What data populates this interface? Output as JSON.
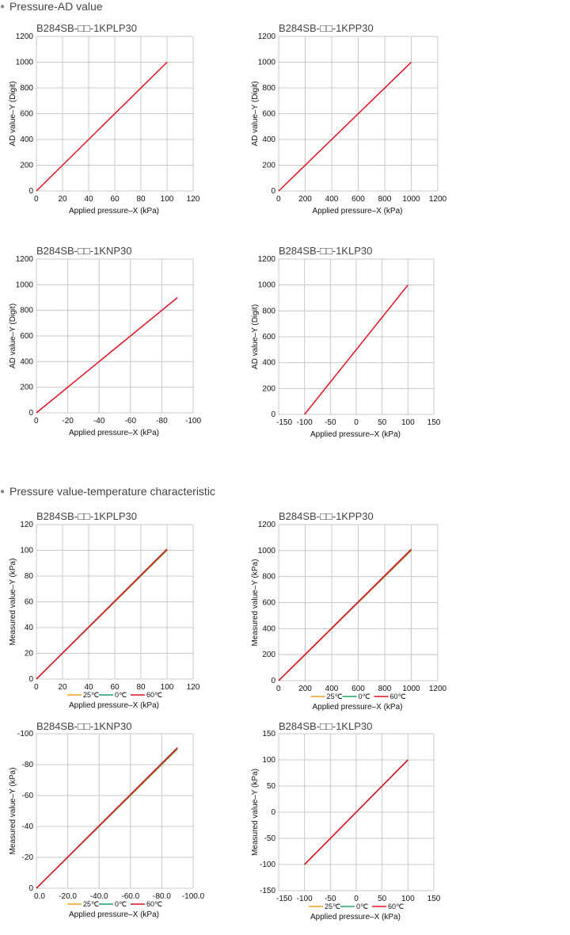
{
  "sections": [
    {
      "heading": "Pressure-AD value"
    },
    {
      "heading": "Pressure value-temperature characteristic"
    }
  ],
  "colors": {
    "series_25": "#f0a020",
    "series_0": "#20a060",
    "series_60": "#e01020",
    "line": "#e01020",
    "grid": "#c8c8c8"
  },
  "chart_data": [
    {
      "type": "line",
      "title": "B284SB-□□-1KPLP30",
      "xlabel": "Applied pressure–X (kPa)",
      "ylabel": "AD value–Y (Digit)",
      "xticks": [
        "0",
        "20",
        "40",
        "60",
        "80",
        "100",
        "120"
      ],
      "yticks": [
        "0",
        "200",
        "400",
        "600",
        "800",
        "1000",
        "1200"
      ],
      "xlim": [
        0,
        120
      ],
      "ylim": [
        0,
        1200
      ],
      "grid": true,
      "series": [
        {
          "x": [
            0,
            100
          ],
          "y": [
            0,
            1000
          ]
        }
      ]
    },
    {
      "type": "line",
      "title": "B284SB-□□-1KPP30",
      "xlabel": "Applied pressure–X (kPa)",
      "ylabel": "AD value–Y (Digit)",
      "xticks": [
        "0",
        "200",
        "400",
        "600",
        "800",
        "1000",
        "1200"
      ],
      "yticks": [
        "0",
        "200",
        "400",
        "600",
        "800",
        "1000",
        "1200"
      ],
      "xlim": [
        0,
        1200
      ],
      "ylim": [
        0,
        1200
      ],
      "grid": true,
      "series": [
        {
          "x": [
            0,
            1000
          ],
          "y": [
            0,
            1000
          ]
        }
      ]
    },
    {
      "type": "line",
      "title": "B284SB-□□-1KNP30",
      "xlabel": "Applied pressure–X (kPa)",
      "ylabel": "AD value–Y (Digit)",
      "xticks": [
        "0",
        "-20",
        "-40",
        "-60",
        "-80",
        "-100"
      ],
      "yticks": [
        "0",
        "200",
        "400",
        "600",
        "800",
        "1000",
        "1200"
      ],
      "xlim": [
        0,
        -100
      ],
      "ylim": [
        0,
        1200
      ],
      "grid": true,
      "series": [
        {
          "x": [
            0,
            -90
          ],
          "y": [
            0,
            900
          ]
        }
      ]
    },
    {
      "type": "line",
      "title": "B284SB-□□-1KLP30",
      "xlabel": "Applied pressure–X (kPa)",
      "ylabel": "AD value–Y (Digit)",
      "xticks": [
        "-150",
        "-100",
        "-50",
        "0",
        "50",
        "100",
        "150"
      ],
      "yticks": [
        "0",
        "200",
        "400",
        "600",
        "800",
        "1000",
        "1200"
      ],
      "xlim": [
        -150,
        150
      ],
      "ylim": [
        0,
        1200
      ],
      "grid": true,
      "series": [
        {
          "x": [
            -100,
            100
          ],
          "y": [
            0,
            1000
          ]
        }
      ]
    },
    {
      "type": "line",
      "title": "B284SB-□□-1KPLP30",
      "xlabel": "Applied pressure–X (kPa)",
      "ylabel": "Measured value–Y (kPa)",
      "xticks": [
        "0",
        "20",
        "40",
        "60",
        "80",
        "100",
        "120"
      ],
      "yticks": [
        "0",
        "20",
        "40",
        "60",
        "80",
        "100",
        "120"
      ],
      "xlim": [
        0,
        120
      ],
      "ylim": [
        0,
        120
      ],
      "grid": true,
      "legend": [
        "25℃",
        "0℃",
        "60℃"
      ],
      "series": [
        {
          "name": "25℃",
          "x": [
            0,
            100
          ],
          "y": [
            0,
            100
          ]
        },
        {
          "name": "0℃",
          "x": [
            0,
            100
          ],
          "y": [
            0,
            100.5
          ]
        },
        {
          "name": "60℃",
          "x": [
            0,
            100
          ],
          "y": [
            0,
            101
          ]
        }
      ]
    },
    {
      "type": "line",
      "title": "B284SB-□□-1KPP30",
      "xlabel": "Applied pressure–X (kPa)",
      "ylabel": "Measured value–Y (kPa)",
      "xticks": [
        "0",
        "200",
        "400",
        "600",
        "800",
        "1000",
        "1200"
      ],
      "yticks": [
        "0",
        "200",
        "400",
        "600",
        "800",
        "1000",
        "1200"
      ],
      "xlim": [
        0,
        1200
      ],
      "ylim": [
        0,
        1200
      ],
      "grid": true,
      "legend": [
        "25℃",
        "0℃",
        "60℃"
      ],
      "series": [
        {
          "name": "25℃",
          "x": [
            0,
            1000
          ],
          "y": [
            0,
            1000
          ]
        },
        {
          "name": "0℃",
          "x": [
            0,
            1000
          ],
          "y": [
            0,
            1005
          ]
        },
        {
          "name": "60℃",
          "x": [
            0,
            1000
          ],
          "y": [
            0,
            1010
          ]
        }
      ]
    },
    {
      "type": "line",
      "title": "B284SB-□□-1KNP30",
      "xlabel": "Applied pressure–X (kPa)",
      "ylabel": "Measured value–Y (kPa)",
      "xticks": [
        "0.0",
        "-20.0",
        "-40.0",
        "-60.0",
        "-80.0",
        "-100.0"
      ],
      "yticks": [
        "0",
        "-20",
        "-40",
        "-60",
        "-80",
        "-100"
      ],
      "xlim": [
        0,
        -100
      ],
      "ylim": [
        0,
        -100
      ],
      "grid": true,
      "legend": [
        "25℃",
        "0℃",
        "60℃"
      ],
      "series": [
        {
          "name": "25℃",
          "x": [
            0,
            -90
          ],
          "y": [
            0,
            -90
          ]
        },
        {
          "name": "0℃",
          "x": [
            0,
            -90
          ],
          "y": [
            0,
            -90.5
          ]
        },
        {
          "name": "60℃",
          "x": [
            0,
            -90
          ],
          "y": [
            0,
            -91
          ]
        }
      ]
    },
    {
      "type": "line",
      "title": "B284SB-□□-1KLP30",
      "xlabel": "Applied pressure–X (kPa)",
      "ylabel": "Measured value–Y (kPa)",
      "xticks": [
        "-150",
        "-100",
        "-50",
        "0",
        "50",
        "100",
        "150"
      ],
      "yticks": [
        "-150",
        "-100",
        "-50",
        "0",
        "50",
        "100",
        "150"
      ],
      "xlim": [
        -150,
        150
      ],
      "ylim": [
        -150,
        150
      ],
      "grid": true,
      "legend": [
        "25℃",
        "0℃",
        "60℃"
      ],
      "series": [
        {
          "name": "25℃",
          "x": [
            -100,
            100
          ],
          "y": [
            -100,
            100
          ]
        },
        {
          "name": "0℃",
          "x": [
            -100,
            100
          ],
          "y": [
            -100,
            100
          ]
        },
        {
          "name": "60℃",
          "x": [
            -100,
            100
          ],
          "y": [
            -100,
            100
          ]
        }
      ]
    }
  ]
}
